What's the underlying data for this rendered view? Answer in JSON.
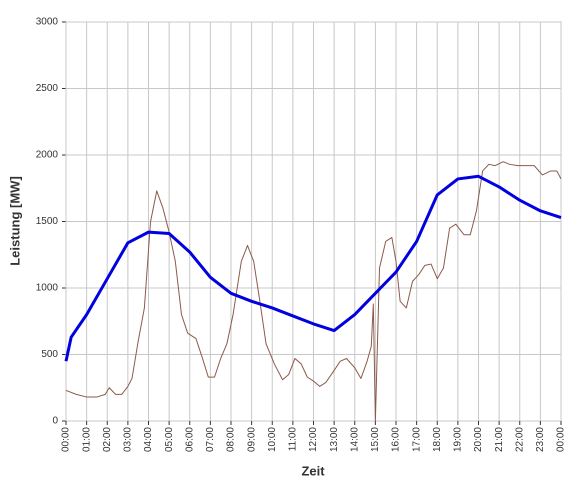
{
  "chart_data": {
    "type": "line",
    "xlabel": "Zeit",
    "ylabel": "Leistung [MW]",
    "xlim": [
      0,
      24
    ],
    "ylim": [
      0,
      3000
    ],
    "xticks": [
      {
        "value": 0,
        "label": "00:00"
      },
      {
        "value": 1,
        "label": "01:00"
      },
      {
        "value": 2,
        "label": "02:00"
      },
      {
        "value": 3,
        "label": "03:00"
      },
      {
        "value": 4,
        "label": "04:00"
      },
      {
        "value": 5,
        "label": "05:00"
      },
      {
        "value": 6,
        "label": "06:00"
      },
      {
        "value": 7,
        "label": "07:00"
      },
      {
        "value": 8,
        "label": "08:00"
      },
      {
        "value": 9,
        "label": "09:00"
      },
      {
        "value": 10,
        "label": "10:00"
      },
      {
        "value": 11,
        "label": "11:00"
      },
      {
        "value": 12,
        "label": "12:00"
      },
      {
        "value": 13,
        "label": "13:00"
      },
      {
        "value": 14,
        "label": "14:00"
      },
      {
        "value": 15,
        "label": "15:00"
      },
      {
        "value": 16,
        "label": "16:00"
      },
      {
        "value": 17,
        "label": "17:00"
      },
      {
        "value": 18,
        "label": "18:00"
      },
      {
        "value": 19,
        "label": "19:00"
      },
      {
        "value": 20,
        "label": "20:00"
      },
      {
        "value": 21,
        "label": "21:00"
      },
      {
        "value": 22,
        "label": "22:00"
      },
      {
        "value": 23,
        "label": "23:00"
      },
      {
        "value": 24,
        "label": "00:00"
      }
    ],
    "yticks": [
      0,
      500,
      1000,
      1500,
      2000,
      2500,
      3000
    ],
    "grid": true,
    "series": [
      {
        "color": "#8b5a4a",
        "width": 1,
        "x": [
          0,
          0.5,
          1,
          1.5,
          1.9,
          2.1,
          2.4,
          2.7,
          3.0,
          3.2,
          3.5,
          3.8,
          4.1,
          4.4,
          4.7,
          5.0,
          5.3,
          5.6,
          5.9,
          6.3,
          6.6,
          6.9,
          7.2,
          7.5,
          7.8,
          8.1,
          8.5,
          8.8,
          9.1,
          9.4,
          9.7,
          10.1,
          10.5,
          10.8,
          11.1,
          11.4,
          11.7,
          12.0,
          12.3,
          12.6,
          13.0,
          13.3,
          13.6,
          14.0,
          14.3,
          14.6,
          14.8,
          14.9,
          15.0,
          15.2,
          15.5,
          15.8,
          16.0,
          16.2,
          16.5,
          16.8,
          17.1,
          17.4,
          17.7,
          18.0,
          18.3,
          18.6,
          18.9,
          19.3,
          19.6,
          19.9,
          20.2,
          20.5,
          20.8,
          21.2,
          21.5,
          21.9,
          22.3,
          22.7,
          23.1,
          23.5,
          23.8,
          24
        ],
        "values": [
          230,
          200,
          180,
          180,
          200,
          250,
          200,
          200,
          260,
          320,
          600,
          850,
          1500,
          1730,
          1600,
          1420,
          1200,
          800,
          660,
          620,
          480,
          330,
          330,
          470,
          580,
          800,
          1200,
          1320,
          1200,
          900,
          580,
          430,
          310,
          350,
          470,
          430,
          330,
          300,
          260,
          290,
          380,
          450,
          470,
          400,
          320,
          450,
          560,
          880,
          0,
          1150,
          1350,
          1380,
          1200,
          900,
          850,
          1050,
          1100,
          1170,
          1180,
          1070,
          1150,
          1450,
          1480,
          1400,
          1400,
          1580,
          1880,
          1930,
          1920,
          1950,
          1930,
          1920,
          1920,
          1920,
          1850,
          1880,
          1880,
          1820
        ]
      },
      {
        "color": "#0000e0",
        "width": 3,
        "x": [
          0,
          0.25,
          1,
          2,
          3,
          4,
          5,
          6,
          7,
          8,
          9,
          10,
          11,
          12,
          13,
          14,
          15,
          16,
          17,
          18,
          19,
          20,
          21,
          22,
          23,
          24
        ],
        "values": [
          450,
          630,
          800,
          1070,
          1340,
          1420,
          1410,
          1270,
          1080,
          960,
          900,
          850,
          790,
          730,
          680,
          800,
          960,
          1120,
          1350,
          1700,
          1820,
          1840,
          1760,
          1660,
          1580,
          1530
        ]
      }
    ]
  }
}
